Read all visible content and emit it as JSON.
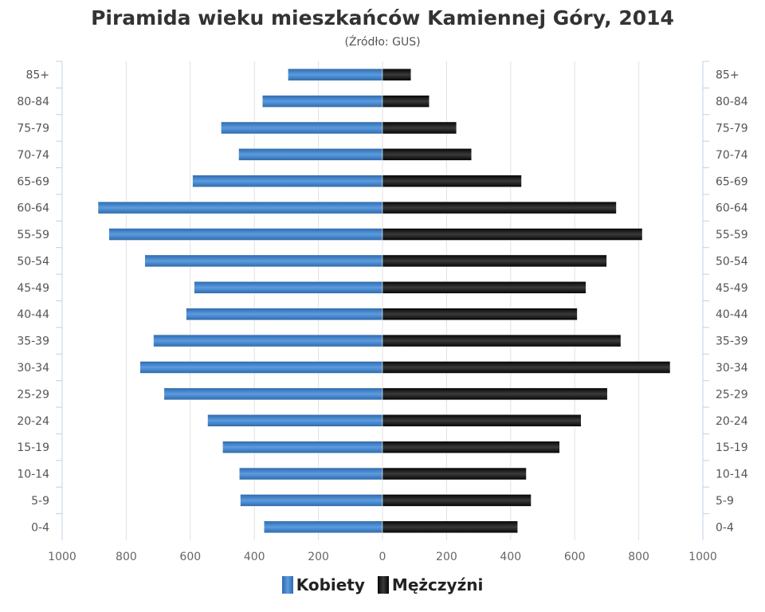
{
  "chart_data": {
    "type": "bar",
    "orientation": "horizontal-population-pyramid",
    "title": "Piramida wieku mieszkańców Kamiennej Góry, 2014",
    "subtitle": "(Źródło: GUS)",
    "categories": [
      "85+",
      "80-84",
      "75-79",
      "70-74",
      "65-69",
      "60-64",
      "55-59",
      "50-54",
      "45-49",
      "40-44",
      "35-39",
      "30-34",
      "25-29",
      "20-24",
      "15-19",
      "10-14",
      "5-9",
      "0-4"
    ],
    "series": [
      {
        "name": "Kobiety",
        "color": "#3f7fc4",
        "side": "left",
        "values": [
          295,
          375,
          504,
          449,
          593,
          888,
          854,
          742,
          588,
          613,
          715,
          757,
          682,
          546,
          499,
          447,
          444,
          370
        ]
      },
      {
        "name": "Mężczyźni",
        "color": "#1a1a1a",
        "side": "right",
        "values": [
          89,
          146,
          231,
          278,
          434,
          730,
          811,
          700,
          635,
          608,
          744,
          898,
          702,
          620,
          553,
          449,
          464,
          422
        ]
      }
    ],
    "xlim": [
      -1000,
      1000
    ],
    "x_ticks": [
      "1000",
      "800",
      "600",
      "400",
      "200",
      "0",
      "200",
      "400",
      "600",
      "800",
      "1000"
    ],
    "grid": true,
    "legend": "bottom-center"
  }
}
